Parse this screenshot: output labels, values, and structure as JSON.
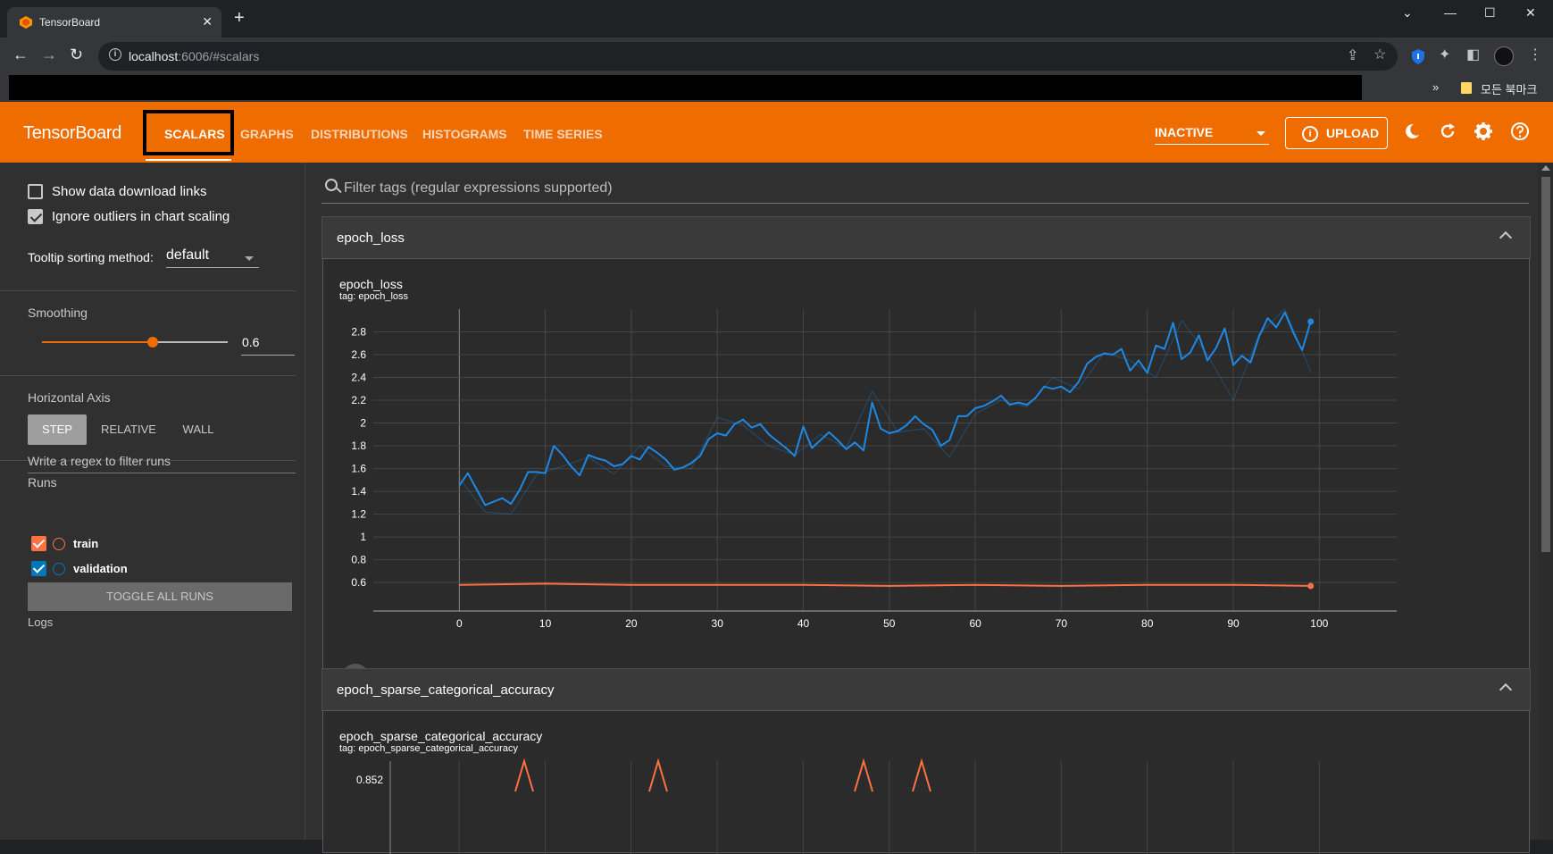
{
  "browser": {
    "tab_title": "TensorBoard",
    "url_host": "localhost",
    "url_rest": ":6006/#scalars",
    "bookmark_more": "»",
    "bookmark_label": "모든 북마크",
    "new_tab": "+",
    "close_tab": "✕",
    "minimize": "—",
    "maximize": "☐",
    "close_window": "✕",
    "chevron": "⌄"
  },
  "header": {
    "brand": "TensorBoard",
    "tabs": [
      "SCALARS",
      "GRAPHS",
      "DISTRIBUTIONS",
      "HISTOGRAMS",
      "TIME SERIES"
    ],
    "active_tab": "SCALARS",
    "run_select": "INACTIVE",
    "upload_label": "UPLOAD",
    "upload_icon": "i"
  },
  "sidebar": {
    "show_download_links": "Show data download links",
    "ignore_outliers": "Ignore outliers in chart scaling",
    "tooltip_sort_label": "Tooltip sorting method:",
    "tooltip_sort_value": "default",
    "smoothing_title": "Smoothing",
    "smoothing_value": "0.6",
    "smoothing_fraction": 0.6,
    "horizontal_axis_title": "Horizontal Axis",
    "axis_options": [
      "STEP",
      "RELATIVE",
      "WALL"
    ],
    "runs_title": "Runs",
    "runs_filter_placeholder": "Write a regex to filter runs",
    "runs": [
      {
        "name": "train",
        "color": "#ff7043"
      },
      {
        "name": "validation",
        "color": "#0077bb"
      }
    ],
    "toggle_all": "TOGGLE ALL RUNS",
    "logs_label": "Logs"
  },
  "main": {
    "filter_placeholder": "Filter tags (regular expressions supported)",
    "groups": [
      {
        "title": "epoch_loss",
        "card_title": "epoch_loss",
        "card_tag": "tag: epoch_loss"
      },
      {
        "title": "epoch_sparse_categorical_accuracy",
        "card_title": "epoch_sparse_categorical_accuracy",
        "card_tag": "tag: epoch_sparse_categorical_accuracy"
      }
    ]
  },
  "chart_data": [
    {
      "type": "line",
      "title": "epoch_loss",
      "subtitle": "tag: epoch_loss",
      "xlabel": "",
      "ylabel": "",
      "xlim": [
        -10,
        109
      ],
      "ylim": [
        0.35,
        3.0
      ],
      "xticks": [
        0,
        10,
        20,
        30,
        40,
        50,
        60,
        70,
        80,
        90,
        100
      ],
      "yticks": [
        0.6,
        0.8,
        1,
        1.2,
        1.4,
        1.6,
        1.8,
        2,
        2.2,
        2.4,
        2.6,
        2.8
      ],
      "ytick_labels": [
        "0.6",
        "0.8",
        "1",
        "1.2",
        "1.4",
        "1.6",
        "1.8",
        "2",
        "2.2",
        "2.4",
        "2.6",
        "2.8"
      ],
      "grid": true,
      "series": [
        {
          "name": "validation",
          "color": "#1e88e5",
          "smoothed": true,
          "x": [
            0,
            1,
            2,
            3,
            4,
            5,
            6,
            7,
            8,
            9,
            10,
            11,
            12,
            13,
            14,
            15,
            16,
            17,
            18,
            19,
            20,
            21,
            22,
            23,
            24,
            25,
            26,
            27,
            28,
            29,
            30,
            31,
            32,
            33,
            34,
            35,
            36,
            37,
            38,
            39,
            40,
            41,
            42,
            43,
            44,
            45,
            46,
            47,
            48,
            49,
            50,
            51,
            52,
            53,
            54,
            55,
            56,
            57,
            58,
            59,
            60,
            61,
            62,
            63,
            64,
            65,
            66,
            67,
            68,
            69,
            70,
            71,
            72,
            73,
            74,
            75,
            76,
            77,
            78,
            79,
            80,
            81,
            82,
            83,
            84,
            85,
            86,
            87,
            88,
            89,
            90,
            91,
            92,
            93,
            94,
            95,
            96,
            97,
            98,
            99
          ],
          "values": [
            1.45,
            1.56,
            1.42,
            1.28,
            1.31,
            1.34,
            1.29,
            1.41,
            1.57,
            1.57,
            1.56,
            1.8,
            1.72,
            1.62,
            1.54,
            1.72,
            1.69,
            1.67,
            1.62,
            1.64,
            1.71,
            1.68,
            1.79,
            1.74,
            1.68,
            1.59,
            1.61,
            1.65,
            1.71,
            1.86,
            1.91,
            1.89,
            1.99,
            2.03,
            1.96,
            1.99,
            1.9,
            1.84,
            1.78,
            1.71,
            1.97,
            1.78,
            1.85,
            1.92,
            1.85,
            1.77,
            1.83,
            1.76,
            2.18,
            1.95,
            1.91,
            1.93,
            1.98,
            2.06,
            1.99,
            1.94,
            1.8,
            1.85,
            2.06,
            2.06,
            2.13,
            2.15,
            2.19,
            2.24,
            2.16,
            2.18,
            2.16,
            2.22,
            2.32,
            2.3,
            2.32,
            2.27,
            2.36,
            2.52,
            2.58,
            2.61,
            2.6,
            2.65,
            2.46,
            2.55,
            2.44,
            2.68,
            2.65,
            2.88,
            2.56,
            2.62,
            2.77,
            2.55,
            2.66,
            2.83,
            2.51,
            2.59,
            2.53,
            2.76,
            2.92,
            2.84,
            2.97,
            2.79,
            2.64,
            2.89
          ]
        },
        {
          "name": "validation (raw)",
          "color": "#1e88e5",
          "smoothed": false,
          "x": [
            0,
            3,
            6,
            9,
            12,
            15,
            18,
            21,
            24,
            27,
            30,
            33,
            36,
            39,
            42,
            45,
            48,
            51,
            54,
            57,
            60,
            63,
            66,
            69,
            72,
            75,
            78,
            81,
            84,
            87,
            90,
            93,
            96,
            99
          ],
          "values": [
            1.52,
            1.22,
            1.2,
            1.55,
            1.62,
            1.7,
            1.55,
            1.8,
            1.62,
            1.6,
            2.05,
            1.98,
            1.8,
            1.72,
            1.9,
            1.78,
            2.28,
            1.92,
            1.95,
            1.7,
            2.08,
            2.2,
            2.14,
            2.4,
            2.3,
            2.62,
            2.55,
            2.4,
            2.9,
            2.6,
            2.2,
            2.78,
            3.0,
            2.45
          ]
        },
        {
          "name": "train",
          "color": "#ff7043",
          "smoothed": true,
          "x": [
            0,
            10,
            20,
            30,
            40,
            50,
            60,
            70,
            80,
            90,
            99
          ],
          "values": [
            0.58,
            0.59,
            0.58,
            0.58,
            0.58,
            0.57,
            0.58,
            0.57,
            0.58,
            0.58,
            0.57
          ]
        }
      ]
    },
    {
      "type": "line",
      "title": "epoch_sparse_categorical_accuracy",
      "subtitle": "tag: epoch_sparse_categorical_accuracy",
      "xlabel": "",
      "ylabel": "",
      "yticks": [
        0.852
      ],
      "ytick_labels": [
        "0.852"
      ],
      "grid": true,
      "series": [
        {
          "name": "train",
          "color": "#ff7043"
        }
      ]
    }
  ]
}
